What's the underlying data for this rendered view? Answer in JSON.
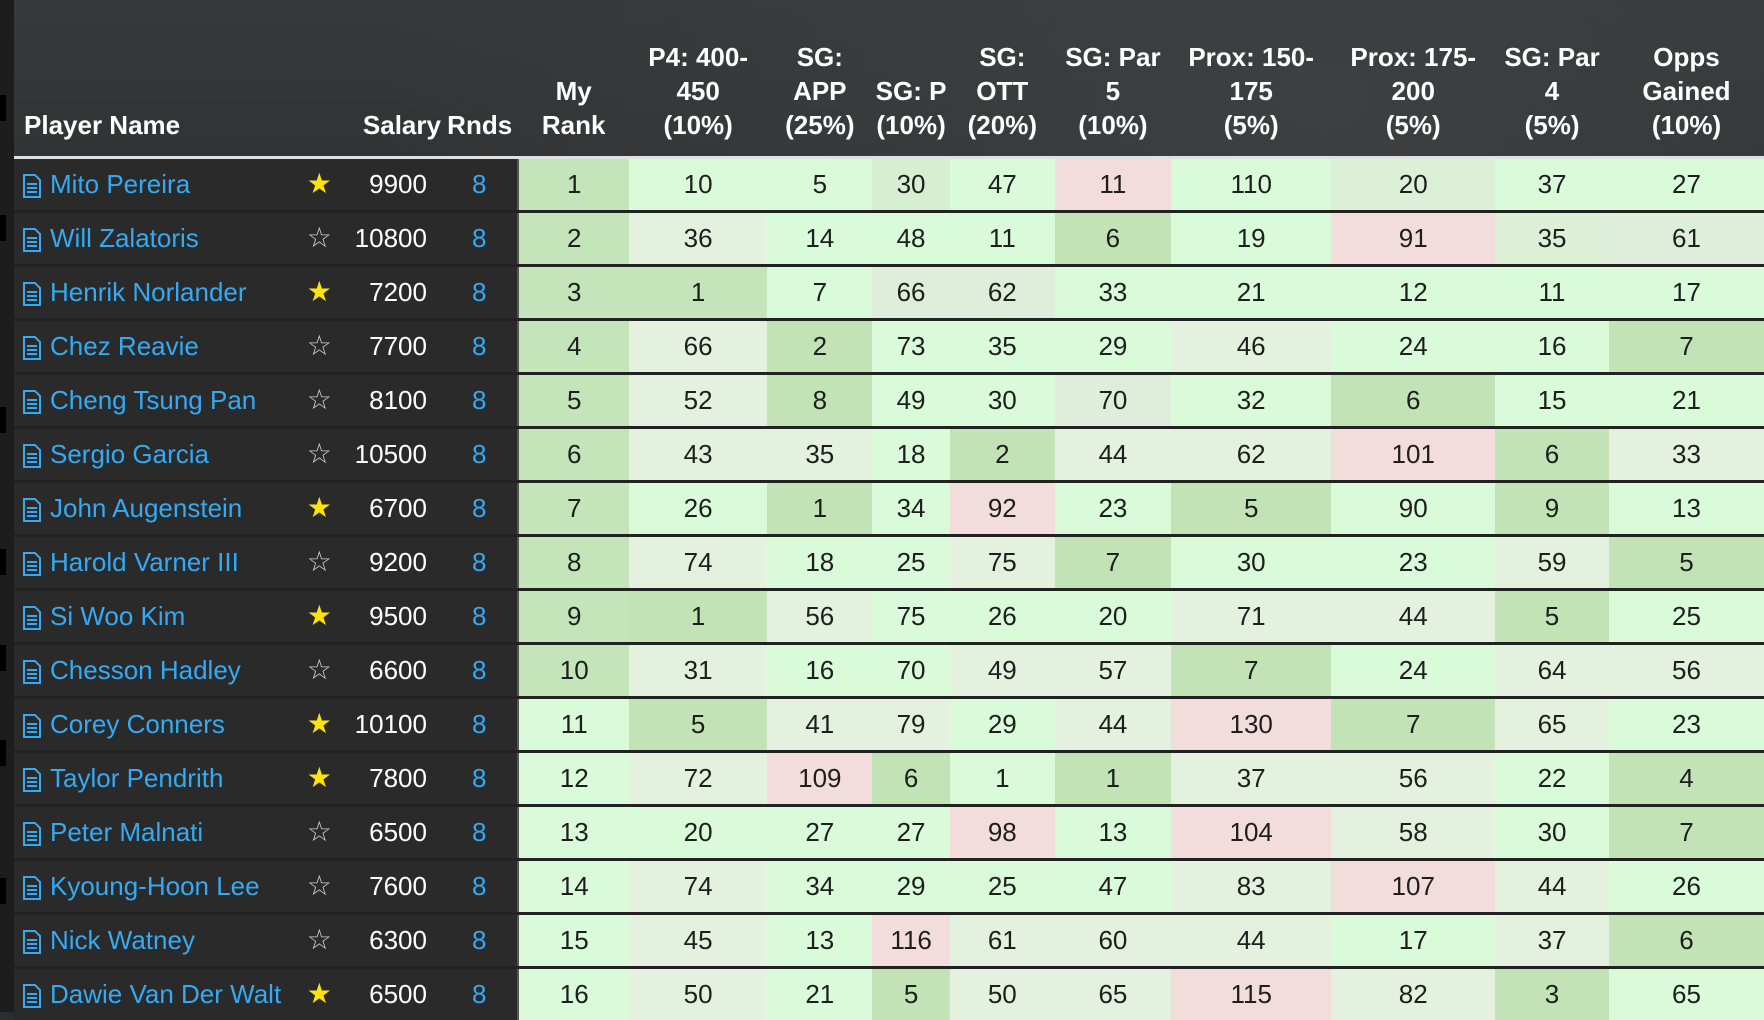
{
  "headers": {
    "player_name": "Player Name",
    "salary": "Salary",
    "rnds": "Rnds",
    "my_rank": "My\nRank",
    "stats": [
      "P4: 400-\n450\n(10%)",
      "SG:\nAPP\n(25%)",
      "SG: P\n(10%)",
      "SG:\nOTT\n(20%)",
      "SG: Par\n5\n(10%)",
      "Prox: 150-\n175\n(5%)",
      "Prox: 175-\n200\n(5%)",
      "SG: Par\n4\n(5%)",
      "Opps\nGained\n(10%)"
    ]
  },
  "icons": {
    "document": "document-icon",
    "star_filled": "star-filled-icon",
    "star_empty": "star-outline-icon"
  },
  "colors": {
    "link": "#33aaf3",
    "star": "#fde20c",
    "good_strong": "#c2e3b6",
    "good_light": "#ddf0d8",
    "good_pale": "#e6f7e1",
    "mint": "#d9fbd9",
    "bad": "#f5dcdc"
  },
  "rows": [
    {
      "name": "Mito Pereira",
      "starred": true,
      "salary": "9900",
      "rnds": "8",
      "rank": "1",
      "stats": [
        "10",
        "5",
        "30",
        "47",
        "11",
        "110",
        "20",
        "37",
        "27"
      ],
      "shades": [
        "c4e4b9",
        "d9fbd9",
        "d9fbd9",
        "d5efd0",
        "d9fbd9",
        "f3dcdc",
        "d9fbd9",
        "dcefd7",
        "d9fbd9"
      ]
    },
    {
      "name": "Will Zalatoris",
      "starred": false,
      "salary": "10800",
      "rnds": "8",
      "rank": "2",
      "stats": [
        "36",
        "14",
        "48",
        "11",
        "6",
        "19",
        "91",
        "35",
        "61"
      ],
      "shades": [
        "c4e4b9",
        "e4f1df",
        "d9fbd9",
        "d9fbd9",
        "d9fbd9",
        "c2e3b6",
        "d9fbd9",
        "f3dcdc",
        "dcefd7",
        "dfeedb"
      ]
    },
    {
      "name": "Henrik Norlander",
      "starred": true,
      "salary": "7200",
      "rnds": "8",
      "rank": "3",
      "stats": [
        "1",
        "7",
        "66",
        "62",
        "33",
        "21",
        "12",
        "11",
        "17"
      ],
      "shades": [
        "c4e4b9",
        "c4e4b9",
        "d9fbd9",
        "dfeedb",
        "dfeedb",
        "d9fbd9",
        "d9fbd9",
        "d9fbd9",
        "d9fbd9",
        "d9fbd9"
      ]
    },
    {
      "name": "Chez Reavie",
      "starred": false,
      "salary": "7700",
      "rnds": "8",
      "rank": "4",
      "stats": [
        "66",
        "2",
        "73",
        "35",
        "29",
        "46",
        "24",
        "16",
        "7"
      ],
      "shades": [
        "c4e4b9",
        "e4f1df",
        "c2e3b6",
        "d9fbd9",
        "d9fbd9",
        "d9fbd9",
        "e4f1df",
        "d9fbd9",
        "d9fbd9",
        "c2e3b6"
      ]
    },
    {
      "name": "Cheng Tsung Pan",
      "starred": false,
      "salary": "8100",
      "rnds": "8",
      "rank": "5",
      "stats": [
        "52",
        "8",
        "49",
        "30",
        "70",
        "32",
        "6",
        "15",
        "21"
      ],
      "shades": [
        "c4e4b9",
        "e4f1df",
        "c2e3b6",
        "d9fbd9",
        "d9fbd9",
        "dfeedb",
        "d9fbd9",
        "c2e3b6",
        "d9fbd9",
        "d9fbd9"
      ]
    },
    {
      "name": "Sergio Garcia",
      "starred": false,
      "salary": "10500",
      "rnds": "8",
      "rank": "6",
      "stats": [
        "43",
        "35",
        "18",
        "2",
        "44",
        "62",
        "101",
        "6",
        "33"
      ],
      "shades": [
        "c4e4b9",
        "e4f1df",
        "e4f1df",
        "d9fbd9",
        "c2e3b6",
        "e4f1df",
        "e4f1df",
        "f3dcdc",
        "c2e3b6",
        "e4f1df"
      ]
    },
    {
      "name": "John Augenstein",
      "starred": true,
      "salary": "6700",
      "rnds": "8",
      "rank": "7",
      "stats": [
        "26",
        "1",
        "34",
        "92",
        "23",
        "5",
        "90",
        "9",
        "13"
      ],
      "shades": [
        "c4e4b9",
        "d9fbd9",
        "c2e3b6",
        "d9fbd9",
        "f3dcdc",
        "d9fbd9",
        "c2e3b6",
        "d9fbd9",
        "c2e3b6",
        "d9fbd9"
      ]
    },
    {
      "name": "Harold Varner III",
      "starred": false,
      "salary": "9200",
      "rnds": "8",
      "rank": "8",
      "stats": [
        "74",
        "18",
        "25",
        "75",
        "7",
        "30",
        "23",
        "59",
        "5"
      ],
      "shades": [
        "c4e4b9",
        "e4f1df",
        "d9fbd9",
        "d9fbd9",
        "e4f1df",
        "c2e3b6",
        "d9fbd9",
        "d9fbd9",
        "e4f1df",
        "c2e3b6"
      ]
    },
    {
      "name": "Si Woo Kim",
      "starred": true,
      "salary": "9500",
      "rnds": "8",
      "rank": "9",
      "stats": [
        "1",
        "56",
        "75",
        "26",
        "20",
        "71",
        "44",
        "5",
        "25"
      ],
      "shades": [
        "c4e4b9",
        "c2e3b6",
        "e4f1df",
        "d9fbd9",
        "d9fbd9",
        "d9fbd9",
        "e4f1df",
        "e4f1df",
        "c2e3b6",
        "d9fbd9"
      ]
    },
    {
      "name": "Chesson Hadley",
      "starred": false,
      "salary": "6600",
      "rnds": "8",
      "rank": "10",
      "stats": [
        "31",
        "16",
        "70",
        "49",
        "57",
        "7",
        "24",
        "64",
        "56"
      ],
      "shades": [
        "c4e4b9",
        "e4f1df",
        "d9fbd9",
        "d9fbd9",
        "e4f1df",
        "e4f1df",
        "c2e3b6",
        "d9fbd9",
        "e4f1df",
        "e4f1df"
      ]
    },
    {
      "name": "Corey Conners",
      "starred": true,
      "salary": "10100",
      "rnds": "8",
      "rank": "11",
      "stats": [
        "5",
        "41",
        "79",
        "29",
        "44",
        "130",
        "7",
        "65",
        "23"
      ],
      "shades": [
        "d9fbd9",
        "c2e3b6",
        "e4f1df",
        "e4f1df",
        "d9fbd9",
        "e4f1df",
        "f3dcdc",
        "c2e3b6",
        "e4f1df",
        "d9fbd9"
      ]
    },
    {
      "name": "Taylor Pendrith",
      "starred": true,
      "salary": "7800",
      "rnds": "8",
      "rank": "12",
      "stats": [
        "72",
        "109",
        "6",
        "1",
        "1",
        "37",
        "56",
        "22",
        "4"
      ],
      "shades": [
        "d9fbd9",
        "e4f1df",
        "f3dcdc",
        "c2e3b6",
        "d9fbd9",
        "c2e3b6",
        "e4f1df",
        "e4f1df",
        "d9fbd9",
        "c2e3b6"
      ]
    },
    {
      "name": "Peter Malnati",
      "starred": false,
      "salary": "6500",
      "rnds": "8",
      "rank": "13",
      "stats": [
        "20",
        "27",
        "27",
        "98",
        "13",
        "104",
        "58",
        "30",
        "7"
      ],
      "shades": [
        "d9fbd9",
        "d9fbd9",
        "d9fbd9",
        "d9fbd9",
        "f3dcdc",
        "d9fbd9",
        "f3dcdc",
        "e4f1df",
        "d9fbd9",
        "c2e3b6"
      ]
    },
    {
      "name": "Kyoung-Hoon Lee",
      "starred": false,
      "salary": "7600",
      "rnds": "8",
      "rank": "14",
      "stats": [
        "74",
        "34",
        "29",
        "25",
        "47",
        "83",
        "107",
        "44",
        "26"
      ],
      "shades": [
        "d9fbd9",
        "e4f1df",
        "d9fbd9",
        "d9fbd9",
        "d9fbd9",
        "d9fbd9",
        "e4f1df",
        "f3dcdc",
        "e4f1df",
        "d9fbd9"
      ]
    },
    {
      "name": "Nick Watney",
      "starred": false,
      "salary": "6300",
      "rnds": "8",
      "rank": "15",
      "stats": [
        "45",
        "13",
        "116",
        "61",
        "60",
        "44",
        "17",
        "37",
        "6"
      ],
      "shades": [
        "d9fbd9",
        "e4f1df",
        "d9fbd9",
        "f3dcdc",
        "e4f1df",
        "e4f1df",
        "e4f1df",
        "d9fbd9",
        "e4f1df",
        "c2e3b6"
      ]
    },
    {
      "name": "Dawie Van Der Walt",
      "starred": true,
      "salary": "6500",
      "rnds": "8",
      "rank": "16",
      "stats": [
        "50",
        "21",
        "5",
        "50",
        "65",
        "115",
        "82",
        "3",
        "65"
      ],
      "shades": [
        "d9fbd9",
        "e4f1df",
        "d9fbd9",
        "c2e3b6",
        "e4f1df",
        "e4f1df",
        "f3dcdc",
        "e4f1df",
        "c2e3b6",
        "d9fbd9"
      ]
    }
  ]
}
